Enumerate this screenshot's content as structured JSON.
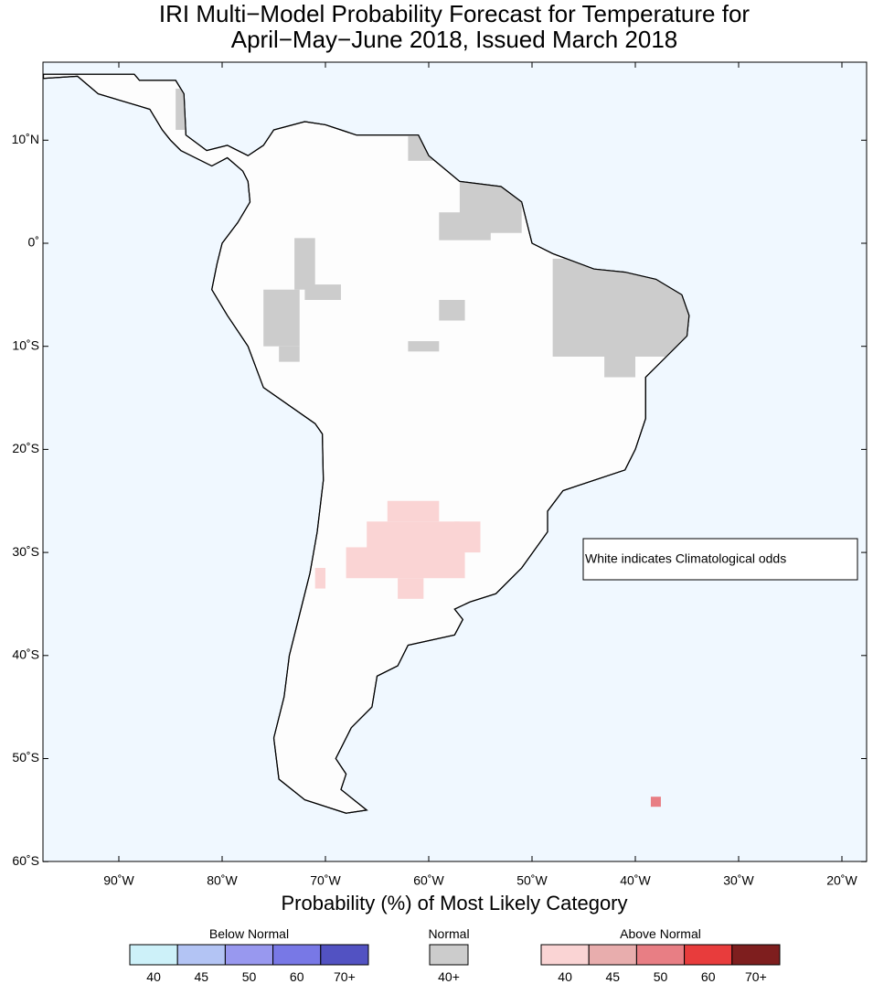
{
  "map": {
    "title": [
      "IRI Multi−Model Probability Forecast for Temperature for",
      "April−May−June 2018, Issued March 2018"
    ],
    "lat_ticks": [
      {
        "value": 10,
        "label": "10˚N"
      },
      {
        "value": 0,
        "label": "0˚"
      },
      {
        "value": -10,
        "label": "10˚S"
      },
      {
        "value": -20,
        "label": "20˚S"
      },
      {
        "value": -30,
        "label": "30˚S"
      },
      {
        "value": -40,
        "label": "40˚S"
      },
      {
        "value": -50,
        "label": "50˚S"
      },
      {
        "value": -60,
        "label": "60˚S"
      }
    ],
    "lon_ticks": [
      {
        "value": -90,
        "label": "90˚W"
      },
      {
        "value": -80,
        "label": "80˚W"
      },
      {
        "value": -70,
        "label": "70˚W"
      },
      {
        "value": -60,
        "label": "60˚W"
      },
      {
        "value": -50,
        "label": "50˚W"
      },
      {
        "value": -40,
        "label": "40˚W"
      },
      {
        "value": -30,
        "label": "30˚W"
      },
      {
        "value": -20,
        "label": "20˚W"
      }
    ],
    "annotation": "White indicates Climatological odds",
    "legend": {
      "title": "Probability (%) of Most Likely Category",
      "groups": [
        {
          "name": "Below Normal",
          "colors": [
            "#cdf1f9",
            "#b3c4f4",
            "#9898ef",
            "#7878e6",
            "#5252c2"
          ],
          "labels": [
            40,
            45,
            50,
            60,
            {
              "value": 70,
              "label": "70+"
            }
          ]
        },
        {
          "name": "Normal",
          "colors": [
            "#cccccc"
          ],
          "labels": [
            {
              "value": 40,
              "label": "40+"
            }
          ]
        },
        {
          "name": "Above Normal",
          "colors": [
            "#fad4d4",
            "#e8adad",
            "#e87e84",
            "#e83c3c",
            "#7e1e1e"
          ],
          "labels": [
            40,
            45,
            50,
            60,
            {
              "value": 70,
              "label": "70+"
            }
          ]
        }
      ]
    }
  }
}
